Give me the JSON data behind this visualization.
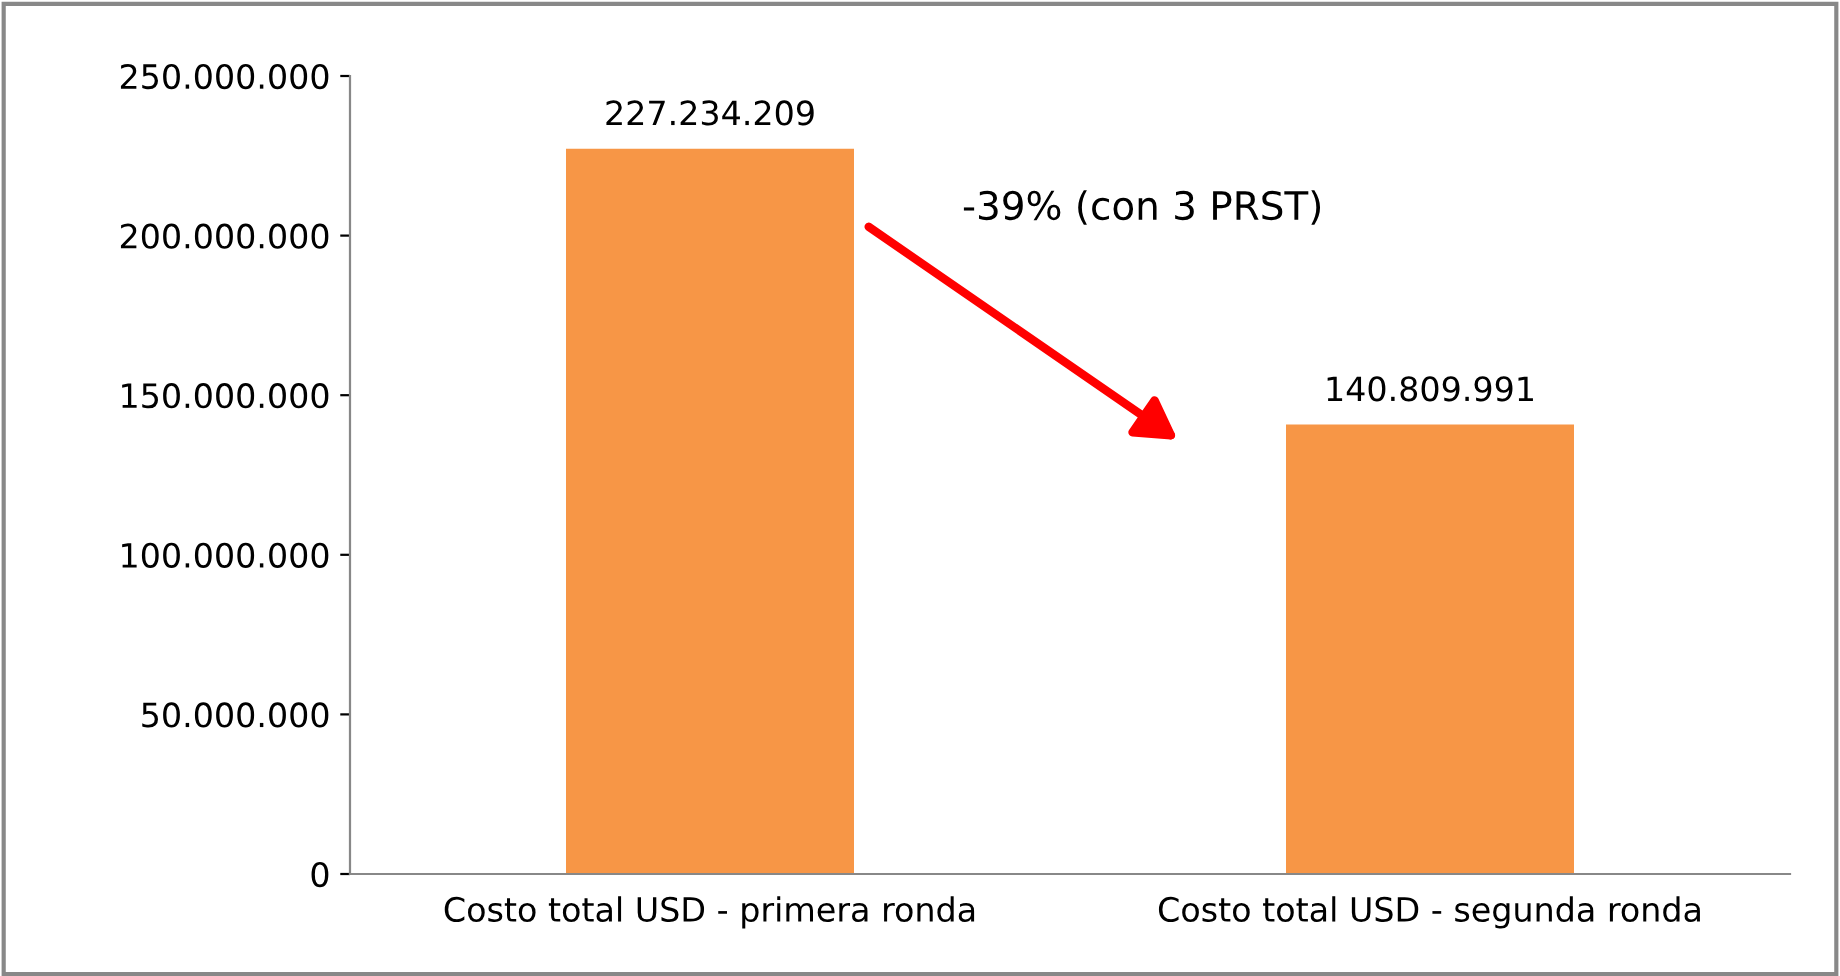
{
  "chart_data": {
    "type": "bar",
    "categories": [
      "Costo total USD - primera ronda",
      "Costo total USD - segunda ronda"
    ],
    "values": [
      227234209,
      140809991
    ],
    "color": "#f79646",
    "value_labels": [
      "227.234.209",
      "140.809.991"
    ],
    "ylim": [
      0,
      250000000
    ],
    "yticks": [
      {
        "value": 0,
        "label": "0"
      },
      {
        "value": 50000000,
        "label": "50.000.000"
      },
      {
        "value": 100000000,
        "label": "100.000.000"
      },
      {
        "value": 150000000,
        "label": "150.000.000"
      },
      {
        "value": 200000000,
        "label": "200.000.000"
      },
      {
        "value": 250000000,
        "label": "250.000.000"
      }
    ],
    "annotations": [
      "-39% (con 3 PRST)"
    ],
    "grid": false,
    "legend": false
  }
}
